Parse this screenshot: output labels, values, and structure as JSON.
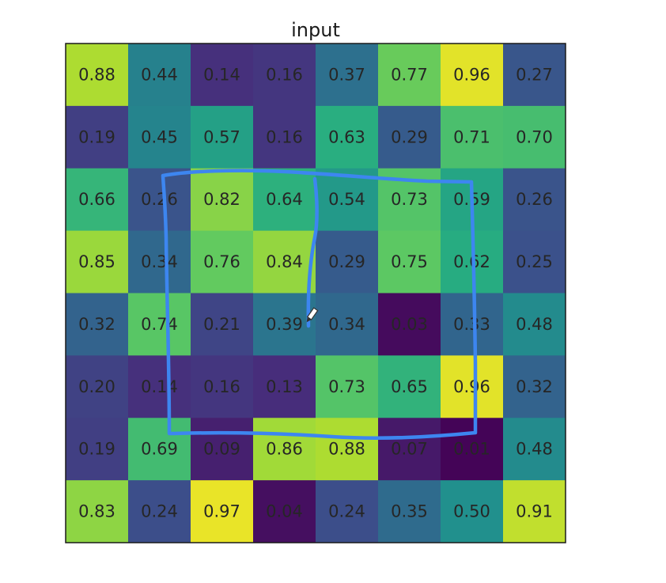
{
  "chart_data": {
    "type": "heatmap",
    "title": "input",
    "xlabel": "",
    "ylabel": "",
    "rows": 8,
    "cols": 8,
    "colormap": "viridis",
    "value_range": [
      0,
      1
    ],
    "values": [
      [
        0.88,
        0.44,
        0.14,
        0.16,
        0.37,
        0.77,
        0.96,
        0.27
      ],
      [
        0.19,
        0.45,
        0.57,
        0.16,
        0.63,
        0.29,
        0.71,
        0.7
      ],
      [
        0.66,
        0.26,
        0.82,
        0.64,
        0.54,
        0.73,
        0.59,
        0.26
      ],
      [
        0.85,
        0.34,
        0.76,
        0.84,
        0.29,
        0.75,
        0.62,
        0.25
      ],
      [
        0.32,
        0.74,
        0.21,
        0.39,
        0.34,
        0.03,
        0.33,
        0.48
      ],
      [
        0.2,
        0.14,
        0.16,
        0.13,
        0.73,
        0.65,
        0.96,
        0.32
      ],
      [
        0.19,
        0.69,
        0.09,
        0.86,
        0.88,
        0.07,
        0.01,
        0.48
      ],
      [
        0.83,
        0.24,
        0.97,
        0.04,
        0.24,
        0.35,
        0.5,
        0.91
      ]
    ],
    "labels": [
      [
        "0.88",
        "0.44",
        "0.14",
        "0.16",
        "0.37",
        "0.77",
        "0.96",
        "0.27"
      ],
      [
        "0.19",
        "0.45",
        "0.57",
        "0.16",
        "0.63",
        "0.29",
        "0.71",
        "0.70"
      ],
      [
        "0.66",
        "0.26",
        "0.82",
        "0.64",
        "0.54",
        "0.73",
        "0.59",
        "0.26"
      ],
      [
        "0.85",
        "0.34",
        "0.76",
        "0.84",
        "0.29",
        "0.75",
        "0.62",
        "0.25"
      ],
      [
        "0.32",
        "0.74",
        "0.21",
        "0.39",
        "0.34",
        "0.03",
        "0.33",
        "0.48"
      ],
      [
        "0.20",
        "0.14",
        "0.16",
        "0.13",
        "0.73",
        "0.65",
        "0.96",
        "0.32"
      ],
      [
        "0.19",
        "0.69",
        "0.09",
        "0.86",
        "0.88",
        "0.07",
        "0.01",
        "0.48"
      ],
      [
        "0.83",
        "0.24",
        "0.97",
        "0.04",
        "0.24",
        "0.35",
        "0.50",
        "0.91"
      ]
    ],
    "grid": false,
    "annotations": {
      "pen_color": "#3d86f0",
      "description": "hand-drawn rectangle around rows 3-7, columns 2-7 with a vertical stroke"
    }
  },
  "cursor": {
    "icon": "pen-cursor-icon"
  }
}
